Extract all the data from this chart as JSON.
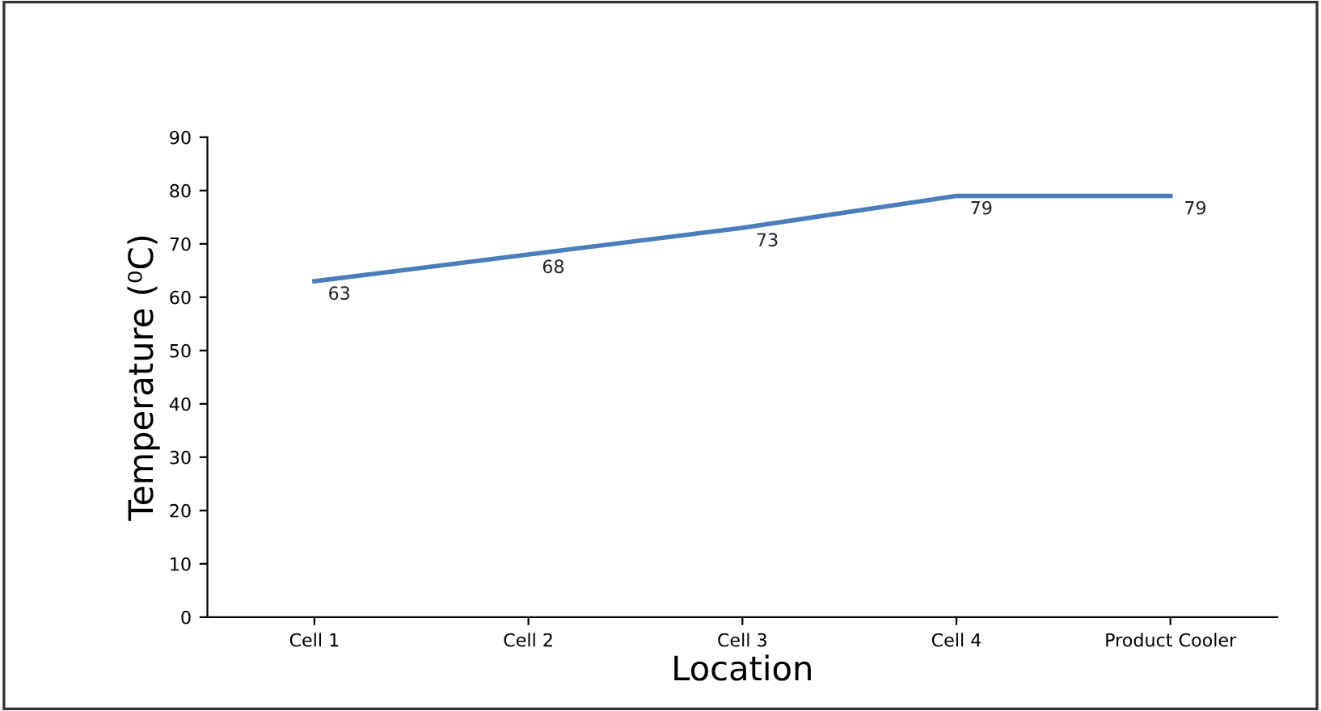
{
  "chart_data": {
    "type": "line",
    "xlabel": "Location",
    "ylabel": "Temperature (⁰C)",
    "categories": [
      "Cell 1",
      "Cell 2",
      "Cell 3",
      "Cell 4",
      "Product Cooler"
    ],
    "series": [
      {
        "color": "#4a7ebb",
        "values": [
          63,
          68,
          73,
          79,
          79
        ]
      }
    ],
    "ylim": [
      0,
      90
    ],
    "yticks": [
      0,
      10,
      20,
      30,
      40,
      50,
      60,
      70,
      80,
      90
    ],
    "data_labels": true,
    "grid": false,
    "legend": false,
    "marker": "none",
    "line_style": "solid"
  }
}
